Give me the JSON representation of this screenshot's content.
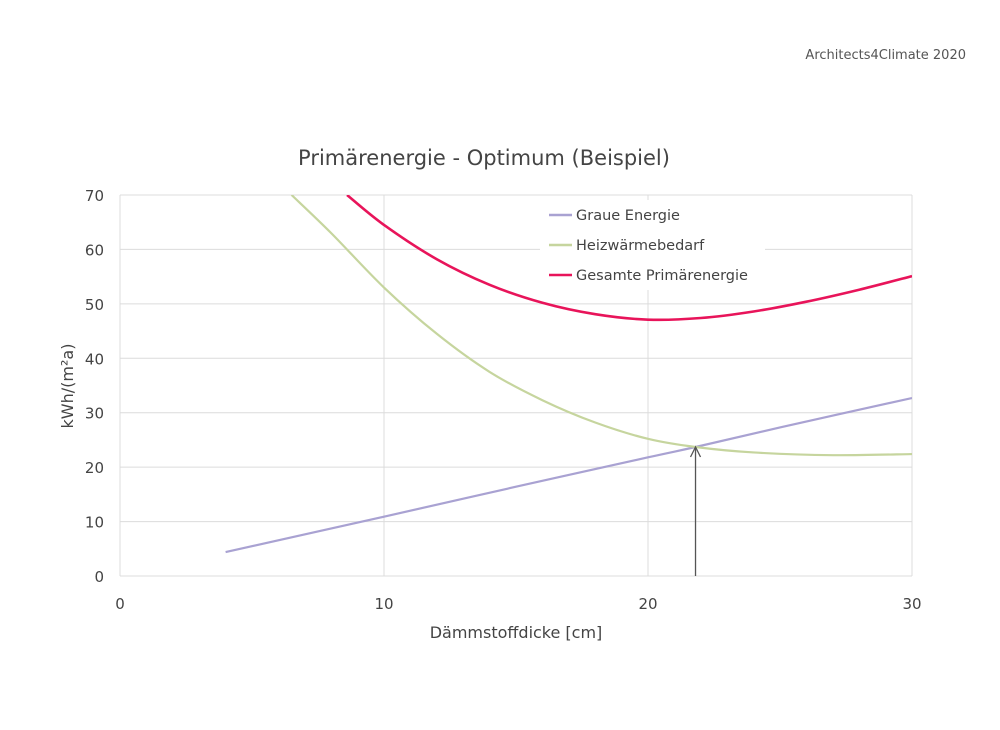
{
  "credit": "Architects4Climate 2020",
  "chart_data": {
    "type": "line",
    "title": "Primärenergie - Optimum (Beispiel)",
    "xlabel": "Dämmstoffdicke [cm]",
    "ylabel": "kWh/(m²a)",
    "xlim": [
      0,
      30
    ],
    "ylim": [
      0,
      70
    ],
    "xticks": [
      0,
      10,
      20,
      30
    ],
    "yticks": [
      0,
      10,
      20,
      30,
      40,
      50,
      60,
      70
    ],
    "grid": true,
    "legend_position": "top-right",
    "series": [
      {
        "name": "Graue Energie",
        "color": "#a9a2d2",
        "x": [
          4,
          10,
          15,
          20,
          21.8,
          25,
          30
        ],
        "y": [
          4.4,
          10.9,
          16.4,
          21.8,
          23.7,
          27.3,
          32.7
        ]
      },
      {
        "name": "Heizwärmebedarf",
        "color": "#c6d59e",
        "x": [
          6.5,
          8,
          10,
          12,
          14,
          16,
          18,
          20,
          21.8,
          24,
          27,
          30
        ],
        "y": [
          70,
          63,
          53,
          44.5,
          37.5,
          32.3,
          28.2,
          25.2,
          23.7,
          22.7,
          22.2,
          22.4
        ]
      },
      {
        "name": "Gesamte Primärenergie",
        "color": "#e8145a",
        "x": [
          8.6,
          10,
          12,
          14,
          16,
          18,
          20,
          22,
          24,
          26,
          28,
          30
        ],
        "y": [
          70,
          64.5,
          58.2,
          53.5,
          50.2,
          48.1,
          47.1,
          47.4,
          48.6,
          50.4,
          52.6,
          55.1
        ]
      }
    ],
    "annotation": {
      "type": "arrow",
      "x": 21.8,
      "from_y": 0,
      "to_y": 23.7,
      "color": "#555555"
    }
  }
}
